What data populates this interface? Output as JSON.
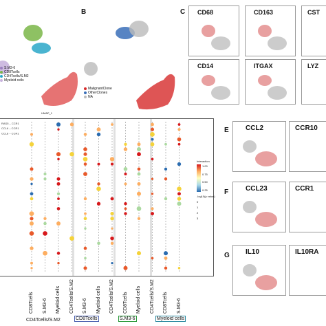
{
  "panels": {
    "A": {
      "legend": [
        "S.M3-6",
        "CD8Tcells",
        "CD4Tcells/S.M2",
        "Myeloid cells"
      ],
      "legend_colors": [
        "#9b7fc0",
        "#7ab648",
        "#2aa7c8",
        "#c9b4de"
      ],
      "axis": "UMAP_1"
    },
    "B": {
      "label": "B",
      "legend": [
        "MalignantClone",
        "OtherClones",
        "NA"
      ],
      "legend_colors": [
        "#d62a2a",
        "#3a6fb8",
        "#bbbbbb"
      ]
    },
    "C": {
      "label": "C",
      "genes": [
        "CD68",
        "CD163",
        "CST",
        "CD14",
        "ITGAX",
        "LYZ"
      ]
    },
    "E": {
      "label": "E",
      "genes": [
        "CCL2",
        "CCR10"
      ]
    },
    "F": {
      "label": "F",
      "genes": [
        "CCL23",
        "CCR1"
      ]
    },
    "G": {
      "label": "G",
      "genes": [
        "IL10",
        "IL10RA"
      ]
    }
  },
  "dotplot": {
    "legend_title": "Interaction",
    "scale_ticks": [
      "1.00",
      "0.75",
      "0.50",
      "0.25"
    ],
    "size_title": "-log10(p value)",
    "size_ticks": [
      "0",
      "1",
      "2",
      "3"
    ],
    "colors": {
      "high": "#d7191c",
      "mid": "#fdae61",
      "low": "#2b6cb0"
    },
    "columns": [
      "CD8Tcells",
      "S.M3-6",
      "Myeloid cells",
      "CD4Tcells/S.M2",
      "S.M3-6",
      "Myeloid cells",
      "CD4Tcells/S.M2",
      "CD8Tcells",
      "Myeloid cells",
      "CD4Tcells/S.M2",
      "CD8Tcells",
      "S.M3-6"
    ],
    "groups": [
      "CD4Tcells/S.M2",
      "CD8Tcells",
      "S.M3-6",
      "Myeloid cells"
    ],
    "row_labels_visible": [
      "RAS5 – CCR1",
      "CCL6 – CCR1",
      "CCL8 – CCR1"
    ]
  }
}
